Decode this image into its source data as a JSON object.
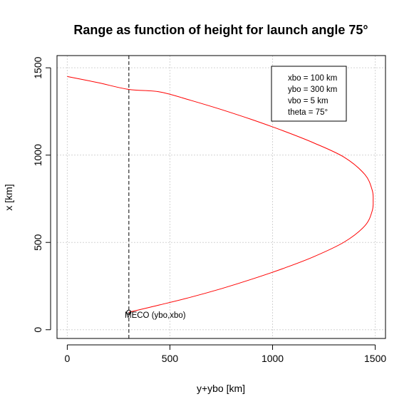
{
  "chart_data": {
    "type": "line",
    "title": "Range as function of height for launch angle 75°",
    "xlabel": "y+ybo [km]",
    "ylabel": "x [km]",
    "xlim": [
      -50,
      1550
    ],
    "ylim": [
      -50,
      1570
    ],
    "xticks": [
      0,
      500,
      1000,
      1500
    ],
    "yticks": [
      0,
      500,
      1000,
      1500
    ],
    "grid": true,
    "series": [
      {
        "color": "#ff0000",
        "x": [
          300,
          450,
          600,
          750,
          900,
          1050,
          1200,
          1350,
          1450,
          1485,
          1490,
          1485,
          1450,
          1350,
          1200,
          1050,
          900,
          750,
          600,
          450,
          300,
          150,
          0
        ],
        "y": [
          100,
          142,
          186,
          235,
          290,
          350,
          418,
          503,
          596,
          680,
          740,
          800,
          888,
          987,
          1070,
          1140,
          1203,
          1261,
          1314,
          1362,
          1376,
          1415,
          1450
        ]
      }
    ],
    "vline": {
      "x": 300,
      "style": "dashed"
    },
    "marker": {
      "x": 300,
      "y": 100,
      "label": "MECO (ybo,xbo)"
    },
    "legend": {
      "position": "top-right",
      "entries": [
        "xbo = 100 km",
        "ybo = 300 km",
        "vbo = 5 km",
        "theta = 75°"
      ]
    }
  }
}
